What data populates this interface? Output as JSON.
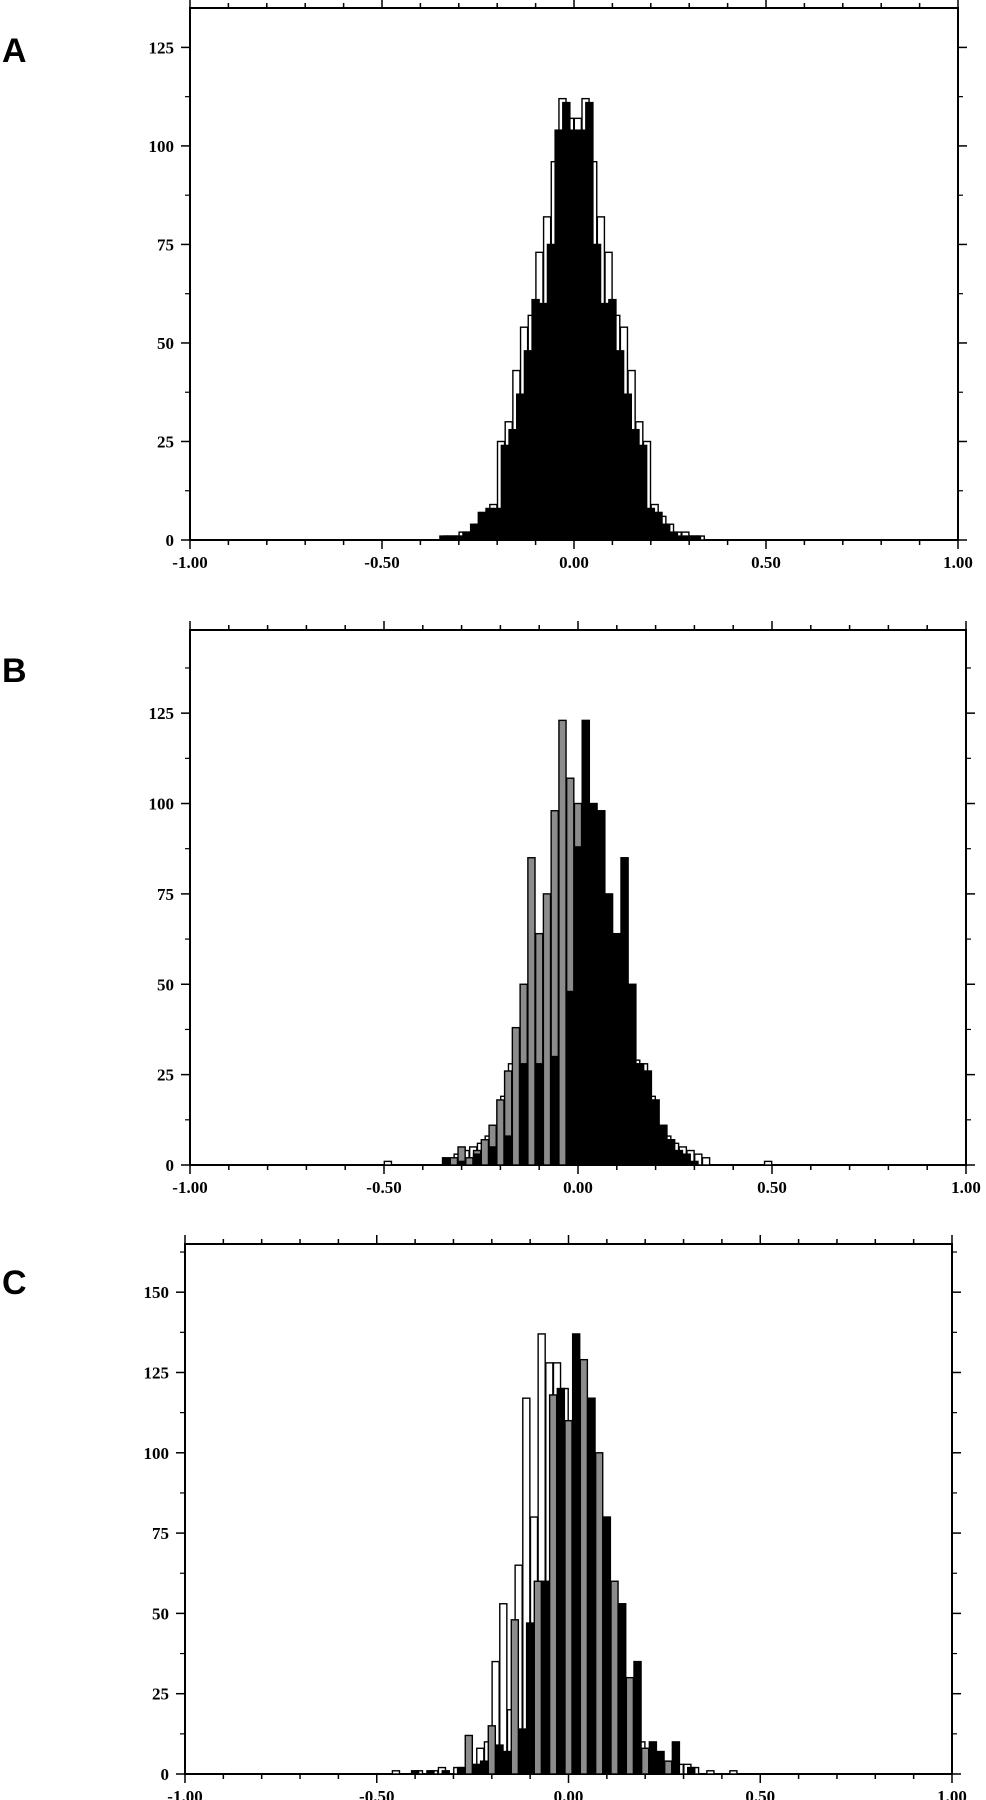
{
  "panels": [
    {
      "label": "A"
    },
    {
      "label": "B"
    },
    {
      "label": "C"
    }
  ],
  "colors": {
    "black": "#000000",
    "white": "#ffffff",
    "gray": "#8c8c8c"
  },
  "chart_data": [
    {
      "type": "bar",
      "panel": "A",
      "xlim": [
        -1.0,
        1.0
      ],
      "ylim": [
        0,
        135
      ],
      "xticks": [
        "-1.00",
        "-0.50",
        "0.00",
        "0.50",
        "1.00"
      ],
      "xtick_values": [
        -1.0,
        -0.5,
        0.0,
        0.5,
        1.0
      ],
      "yticks": [
        "0",
        "25",
        "50",
        "75",
        "100",
        "125"
      ],
      "ytick_values": [
        0,
        25,
        50,
        75,
        100,
        125
      ],
      "bin_width": 0.02,
      "series": [
        {
          "style": "white",
          "x": [
            -0.33,
            -0.31,
            -0.29,
            -0.27,
            -0.25,
            -0.23,
            -0.21,
            -0.19,
            -0.17,
            -0.15,
            -0.13,
            -0.11,
            -0.09,
            -0.07,
            -0.05,
            -0.03,
            -0.01,
            0.01,
            0.03,
            0.05,
            0.07,
            0.09,
            0.11,
            0.13,
            0.15,
            0.17,
            0.19,
            0.21,
            0.23,
            0.25,
            0.27,
            0.29,
            0.31,
            0.33
          ],
          "values": [
            1,
            1,
            2,
            2,
            4,
            6,
            9,
            25,
            30,
            43,
            54,
            57,
            73,
            82,
            96,
            112,
            107,
            107,
            112,
            96,
            82,
            73,
            57,
            54,
            43,
            30,
            25,
            9,
            6,
            4,
            2,
            2,
            1,
            1
          ]
        },
        {
          "style": "black",
          "x": [
            -0.34,
            -0.32,
            -0.3,
            -0.28,
            -0.26,
            -0.24,
            -0.22,
            -0.2,
            -0.18,
            -0.16,
            -0.14,
            -0.12,
            -0.1,
            -0.08,
            -0.06,
            -0.04,
            -0.02,
            0.0,
            0.02,
            0.04,
            0.06,
            0.08,
            0.1,
            0.12,
            0.14,
            0.16,
            0.18,
            0.2,
            0.22,
            0.24,
            0.26,
            0.28,
            0.3,
            0.32
          ],
          "values": [
            1,
            1,
            1,
            2,
            4,
            7,
            8,
            8,
            24,
            28,
            37,
            48,
            61,
            60,
            75,
            104,
            111,
            104,
            104,
            111,
            75,
            60,
            61,
            48,
            37,
            28,
            24,
            8,
            7,
            4,
            2,
            1,
            1,
            1
          ]
        }
      ]
    },
    {
      "type": "bar",
      "panel": "B",
      "xlim": [
        -1.0,
        1.0
      ],
      "ylim": [
        0,
        148
      ],
      "xticks": [
        "-1.00",
        "-0.50",
        "0.00",
        "0.50",
        "1.00"
      ],
      "xtick_values": [
        -1.0,
        -0.5,
        0.0,
        0.5,
        1.0
      ],
      "yticks": [
        "0",
        "25",
        "50",
        "75",
        "100",
        "125"
      ],
      "ytick_values": [
        0,
        25,
        50,
        75,
        100,
        125
      ],
      "bin_width": 0.02,
      "series": [
        {
          "style": "white",
          "x": [
            -0.49,
            -0.31,
            -0.29,
            -0.27,
            -0.25,
            -0.23,
            -0.21,
            -0.19,
            -0.17,
            -0.15,
            -0.13,
            -0.11,
            -0.09,
            -0.07,
            -0.05,
            -0.03,
            -0.01,
            0.01,
            0.03,
            0.05,
            0.07,
            0.09,
            0.11,
            0.13,
            0.15,
            0.17,
            0.19,
            0.21,
            0.23,
            0.25,
            0.27,
            0.29,
            0.31,
            0.33,
            0.49
          ],
          "values": [
            1,
            3,
            4,
            5,
            6,
            8,
            10,
            19,
            28,
            29,
            30,
            29,
            45,
            49,
            52,
            60,
            60,
            60,
            60,
            52,
            49,
            45,
            29,
            30,
            29,
            28,
            19,
            10,
            8,
            6,
            5,
            4,
            3,
            2,
            1
          ]
        },
        {
          "style": "gray",
          "x": [
            -0.32,
            -0.3,
            -0.28,
            -0.26,
            -0.24,
            -0.22,
            -0.2,
            -0.18,
            -0.16,
            -0.14,
            -0.12,
            -0.1,
            -0.08,
            -0.06,
            -0.04,
            -0.02,
            0.0,
            0.02,
            0.04
          ],
          "values": [
            2,
            5,
            2,
            4,
            7,
            11,
            18,
            26,
            38,
            50,
            85,
            64,
            75,
            98,
            123,
            107,
            100,
            88,
            70
          ]
        },
        {
          "style": "black",
          "x": [
            -0.34,
            -0.3,
            -0.26,
            -0.22,
            -0.18,
            -0.14,
            -0.1,
            -0.06,
            -0.02,
            0.0,
            0.02,
            0.04,
            0.06,
            0.08,
            0.1,
            0.12,
            0.14,
            0.16,
            0.18,
            0.2,
            0.22,
            0.24,
            0.26,
            0.28,
            0.3
          ],
          "values": [
            2,
            1,
            3,
            5,
            8,
            28,
            28,
            30,
            48,
            88,
            123,
            100,
            98,
            75,
            64,
            85,
            50,
            28,
            26,
            18,
            11,
            7,
            4,
            3,
            1
          ]
        }
      ]
    },
    {
      "type": "bar",
      "panel": "C",
      "xlim": [
        -1.0,
        1.0
      ],
      "ylim": [
        0,
        165
      ],
      "xticks": [
        "-1.00",
        "-0.50",
        "0.00",
        "0.50",
        "1.00"
      ],
      "xtick_values": [
        -1.0,
        -0.5,
        0.0,
        0.5,
        1.0
      ],
      "yticks": [
        "0",
        "25",
        "50",
        "75",
        "100",
        "125",
        "150"
      ],
      "ytick_values": [
        0,
        25,
        50,
        75,
        100,
        125,
        150
      ],
      "bin_width": 0.02,
      "series": [
        {
          "style": "white",
          "x": [
            -0.45,
            -0.39,
            -0.35,
            -0.33,
            -0.29,
            -0.27,
            -0.23,
            -0.21,
            -0.19,
            -0.17,
            -0.15,
            -0.13,
            -0.11,
            -0.09,
            -0.07,
            -0.05,
            -0.03,
            -0.01,
            0.01,
            0.03,
            0.05,
            0.07,
            0.09,
            0.11,
            0.13,
            0.15,
            0.17,
            0.19,
            0.21,
            0.23,
            0.25,
            0.27,
            0.29,
            0.31,
            0.33,
            0.37,
            0.43
          ],
          "values": [
            1,
            1,
            1,
            2,
            2,
            2,
            8,
            10,
            35,
            53,
            20,
            65,
            117,
            80,
            137,
            128,
            128,
            120,
            110,
            100,
            60,
            55,
            35,
            25,
            30,
            22,
            20,
            10,
            8,
            5,
            4,
            2,
            3,
            3,
            2,
            1,
            1
          ]
        },
        {
          "style": "gray",
          "x": [
            -0.26,
            -0.2,
            -0.14,
            -0.08,
            -0.04,
            0.0,
            0.04,
            0.08,
            0.12,
            0.16,
            0.2,
            0.26
          ],
          "values": [
            12,
            15,
            48,
            60,
            118,
            110,
            129,
            100,
            60,
            30,
            8,
            4
          ]
        },
        {
          "style": "black",
          "x": [
            -0.4,
            -0.36,
            -0.32,
            -0.28,
            -0.24,
            -0.22,
            -0.18,
            -0.16,
            -0.12,
            -0.1,
            -0.06,
            -0.02,
            0.02,
            0.06,
            0.1,
            0.14,
            0.18,
            0.22,
            0.24,
            0.28,
            0.32
          ],
          "values": [
            1,
            1,
            1,
            2,
            3,
            4,
            9,
            7,
            14,
            47,
            60,
            120,
            137,
            117,
            80,
            53,
            35,
            10,
            7,
            10,
            2
          ]
        }
      ]
    }
  ]
}
